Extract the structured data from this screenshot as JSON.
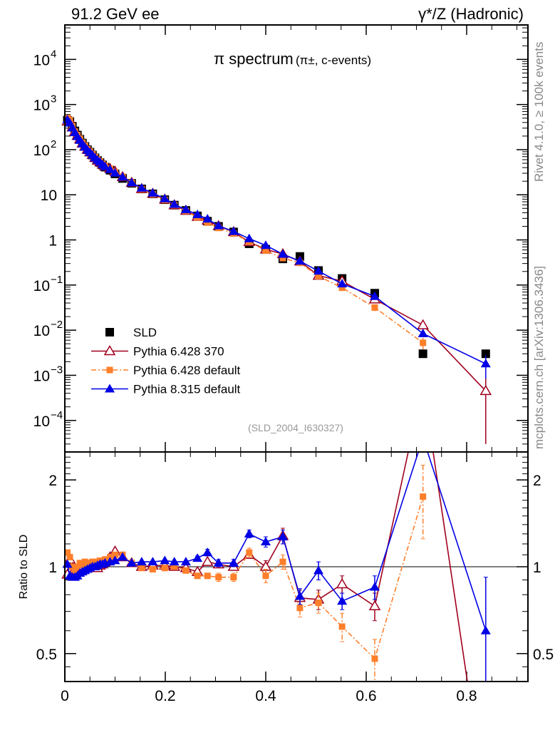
{
  "header": {
    "left": "91.2 GeV ee",
    "right": "γ*/Z (Hadronic)"
  },
  "side": {
    "rivet": "Rivet 4.1.0, ≥ 100k events",
    "mcplots": "mcplots.cern.ch [arXiv:1306.3436]"
  },
  "chart_data": {
    "type": "line",
    "title": "π spectrum",
    "subtitle": "(π±, c-events)",
    "watermark": "(SLD_2004_I630327)",
    "ylabel_ratio": "Ratio to SLD",
    "xlim": [
      0,
      0.922
    ],
    "ylim": [
      2e-05,
      58000
    ],
    "ratio_ylim": [
      0.4,
      2.5
    ],
    "yscale": "log",
    "x_ticks": [
      "0",
      "0.2",
      "0.4",
      "0.6",
      "0.8"
    ],
    "x_tick_values": [
      0,
      0.2,
      0.4,
      0.6,
      0.8
    ],
    "y_ticks": [
      {
        "v": 10000,
        "b": "10",
        "e": "4"
      },
      {
        "v": 1000,
        "b": "10",
        "e": "3"
      },
      {
        "v": 100,
        "b": "10",
        "e": "2"
      },
      {
        "v": 10,
        "b": "10",
        "e": ""
      },
      {
        "v": 1,
        "b": "1",
        "e": ""
      },
      {
        "v": 0.1,
        "b": "10",
        "e": "−1"
      },
      {
        "v": 0.01,
        "b": "10",
        "e": "−2"
      },
      {
        "v": 0.001,
        "b": "10",
        "e": "−3"
      },
      {
        "v": 0.0001,
        "b": "10",
        "e": "−4"
      }
    ],
    "ratio_ticks": [
      {
        "v": 2,
        "t": "2"
      },
      {
        "v": 1,
        "t": "1"
      },
      {
        "v": 0.5,
        "t": "0.5"
      }
    ],
    "legend_position": "bottom-left",
    "x": [
      0.005,
      0.01,
      0.015,
      0.02,
      0.025,
      0.03,
      0.035,
      0.04,
      0.045,
      0.05,
      0.055,
      0.06,
      0.065,
      0.07,
      0.075,
      0.08,
      0.09,
      0.1,
      0.115,
      0.133,
      0.153,
      0.175,
      0.199,
      0.218,
      0.241,
      0.264,
      0.284,
      0.306,
      0.336,
      0.367,
      0.4,
      0.434,
      0.468,
      0.505,
      0.552,
      0.617,
      0.713,
      0.838
    ],
    "data": {
      "name": "SLD",
      "color": "#000000",
      "values": [
        450,
        420,
        330,
        260,
        210,
        170,
        140,
        118,
        100,
        88,
        76,
        66,
        58,
        52,
        46,
        41,
        35,
        29,
        23,
        18,
        13.5,
        10.5,
        7.8,
        5.9,
        4.5,
        3.4,
        2.6,
        2.0,
        1.5,
        0.82,
        0.62,
        0.38,
        0.43,
        0.21,
        0.14,
        0.066,
        0.003,
        0.003
      ]
    },
    "series": [
      {
        "name": "Pythia 6.428 370",
        "color": "#a0001e",
        "style": "solid",
        "marker": "open-triangle",
        "ratio": [
          0.94,
          1.06,
          0.95,
          0.96,
          0.97,
          1.0,
          0.98,
          0.99,
          1.0,
          1.0,
          1.01,
          1.0,
          0.99,
          1.01,
          1.02,
          1.04,
          1.08,
          1.13,
          1.08,
          1.03,
          1.0,
          1.01,
          1.01,
          1.0,
          0.99,
          0.96,
          1.04,
          1.02,
          1.0,
          1.1,
          1.0,
          1.28,
          0.78,
          0.77,
          0.87,
          0.73,
          4.3,
          0.15
        ],
        "ratio_err": [
          0,
          0,
          0,
          0,
          0,
          0,
          0,
          0,
          0,
          0,
          0,
          0,
          0,
          0,
          0,
          0,
          0,
          0,
          0,
          0,
          0,
          0,
          0,
          0,
          0,
          0,
          0,
          0,
          0,
          0.03,
          0.05,
          0.08,
          0.05,
          0.06,
          0.06,
          0.08,
          0,
          0.15
        ]
      },
      {
        "name": "Pythia 6.428 default",
        "color": "#ff7f2a",
        "style": "dashdot",
        "marker": "square",
        "ratio": [
          1.12,
          1.08,
          1.0,
          0.97,
          1.0,
          1.03,
          1.02,
          1.04,
          1.02,
          1.03,
          1.04,
          1.04,
          1.04,
          1.05,
          1.04,
          1.06,
          1.08,
          1.1,
          1.1,
          1.03,
          0.99,
          0.98,
          0.99,
          1.0,
          0.97,
          0.93,
          0.93,
          0.92,
          0.92,
          1.12,
          0.93,
          1.04,
          0.72,
          0.75,
          0.62,
          0.48,
          1.75,
          null
        ],
        "ratio_err": [
          0,
          0,
          0,
          0,
          0,
          0,
          0,
          0,
          0,
          0,
          0,
          0,
          0,
          0,
          0,
          0,
          0,
          0,
          0,
          0,
          0,
          0,
          0,
          0,
          0.02,
          0.02,
          0.02,
          0.03,
          0.03,
          0.04,
          0.05,
          0.06,
          0.05,
          0.06,
          0.07,
          0.08,
          0.5,
          0
        ]
      },
      {
        "name": "Pythia 8.315 default",
        "color": "#0000e6",
        "style": "solid",
        "marker": "triangle",
        "ratio": [
          1.02,
          0.93,
          0.92,
          0.92,
          0.93,
          0.95,
          0.96,
          0.97,
          0.98,
          0.99,
          1.0,
          1.0,
          1.01,
          1.02,
          1.02,
          1.03,
          1.04,
          1.05,
          1.08,
          1.03,
          1.04,
          1.04,
          1.05,
          1.04,
          1.04,
          1.07,
          1.12,
          1.03,
          1.03,
          1.3,
          1.22,
          1.27,
          0.79,
          0.97,
          0.76,
          0.85,
          2.8,
          0.6
        ],
        "ratio_err": [
          0,
          0,
          0,
          0,
          0,
          0,
          0,
          0,
          0,
          0,
          0,
          0,
          0,
          0,
          0,
          0,
          0,
          0,
          0,
          0,
          0,
          0,
          0,
          0,
          0,
          0.02,
          0.03,
          0.03,
          0.03,
          0.04,
          0.05,
          0.07,
          0.05,
          0.07,
          0.05,
          0.08,
          0,
          0.32
        ]
      }
    ]
  }
}
